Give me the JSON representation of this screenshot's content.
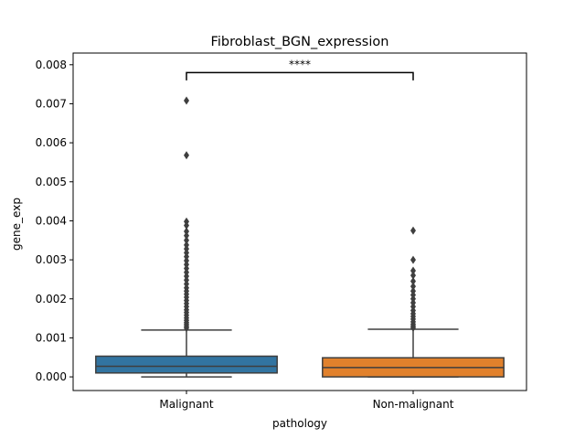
{
  "chart_data": {
    "type": "box",
    "title": "Fibroblast_BGN_expression",
    "xlabel": "pathology",
    "ylabel": "gene_exp",
    "ylim": [
      -0.00035,
      0.0083
    ],
    "yticks": [
      0.0,
      0.001,
      0.002,
      0.003,
      0.004,
      0.005,
      0.006,
      0.007,
      0.008
    ],
    "ytick_labels": [
      "0.000",
      "0.001",
      "0.002",
      "0.003",
      "0.004",
      "0.005",
      "0.006",
      "0.007",
      "0.008"
    ],
    "grid": false,
    "categories": [
      "Malignant",
      "Non-malignant"
    ],
    "boxes": [
      {
        "category": "Malignant",
        "color": "#3274a1",
        "whisker_low": 0.0,
        "q1": 0.0001,
        "median": 0.00027,
        "q3": 0.00053,
        "whisker_high": 0.0012,
        "outliers": [
          0.00708,
          0.00568,
          0.00398,
          0.00388,
          0.00373,
          0.00362,
          0.0035,
          0.00338,
          0.00328,
          0.00318,
          0.00308,
          0.00298,
          0.00288,
          0.00278,
          0.00268,
          0.00258,
          0.00248,
          0.00238,
          0.00228,
          0.0022,
          0.00212,
          0.00204,
          0.00196,
          0.00188,
          0.0018,
          0.00172,
          0.00165,
          0.00158,
          0.00151,
          0.00145,
          0.00139,
          0.00134,
          0.00129,
          0.00125
        ]
      },
      {
        "category": "Non-malignant",
        "color": "#e1812c",
        "whisker_low": 0.0,
        "q1": 0.0,
        "median": 0.00024,
        "q3": 0.00049,
        "whisker_high": 0.00122,
        "outliers": [
          0.00375,
          0.003,
          0.00272,
          0.0026,
          0.00245,
          0.00232,
          0.0022,
          0.0021,
          0.002,
          0.0019,
          0.0018,
          0.0017,
          0.00162,
          0.00155,
          0.00148,
          0.00141,
          0.00135,
          0.0013,
          0.00126
        ]
      }
    ],
    "annotation": {
      "text": "****",
      "y": 0.0078,
      "drop_to": 0.0076,
      "between": [
        "Malignant",
        "Non-malignant"
      ]
    }
  }
}
